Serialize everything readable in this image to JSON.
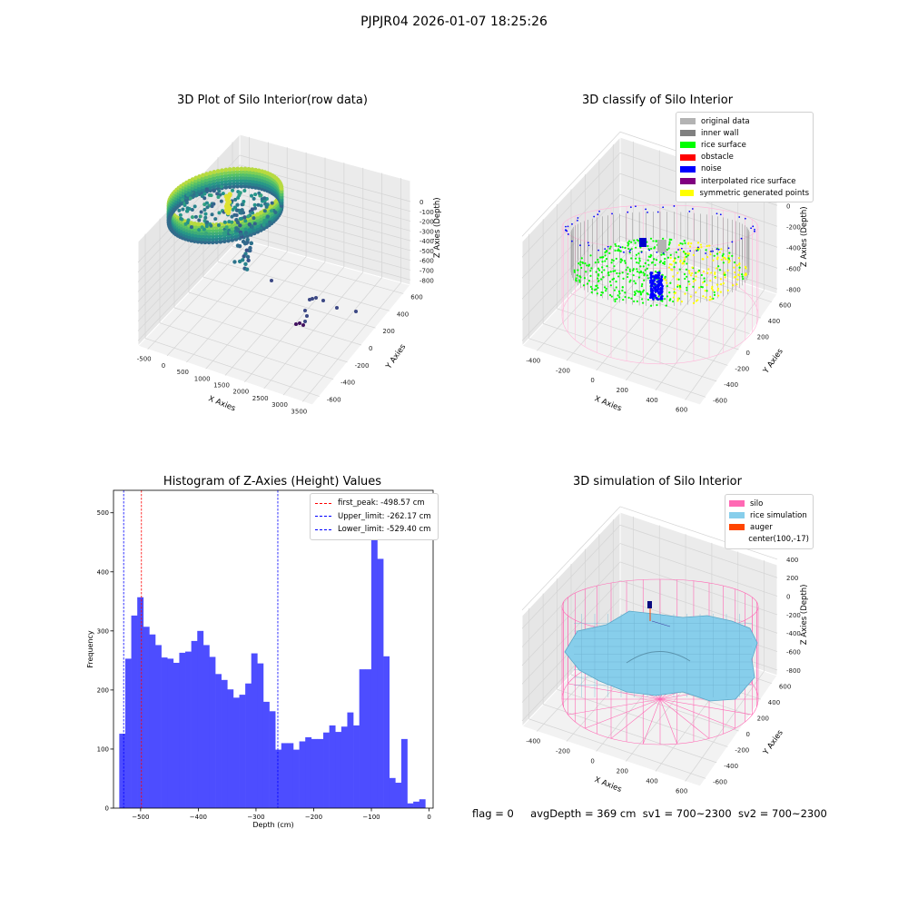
{
  "figure": {
    "suptitle": "PJPJR04 2026-01-07 18:25:26",
    "status": {
      "flag": "flag = 0",
      "avg_depth": "avgDepth = 369 cm",
      "sv1": "sv1 = 700~2300",
      "sv2": "sv2 = 700~2300"
    }
  },
  "chart_data": [
    {
      "type": "scatter",
      "projection": "3d",
      "title": "3D Plot of Silo Interior(row data)",
      "xlabel": "X Axies",
      "ylabel": "Y Axies",
      "zlabel": "Z Axies (Depth)",
      "x_ticks": [
        "-500",
        "0",
        "500",
        "1000",
        "1500",
        "2000",
        "2500",
        "3000",
        "3500"
      ],
      "y_ticks": [
        "-600",
        "-400",
        "-200",
        "0",
        "200",
        "400",
        "600"
      ],
      "z_ticks": [
        "0",
        "-100",
        "-200",
        "-300",
        "-400",
        "-500",
        "-600",
        "-700",
        "-800"
      ],
      "colormap": "viridis",
      "grid": true
    },
    {
      "type": "scatter",
      "projection": "3d",
      "title": "3D classify of Silo Interior",
      "xlabel": "X Axies",
      "ylabel": "Y Axies",
      "zlabel": "Z Axies (Depth)",
      "x_ticks": [
        "-400",
        "-200",
        "0",
        "200",
        "400",
        "600"
      ],
      "y_ticks": [
        "-600",
        "-400",
        "-200",
        "0",
        "200",
        "400",
        "600"
      ],
      "z_ticks": [
        "200",
        "0",
        "-200",
        "-400",
        "-600",
        "-800"
      ],
      "legend": [
        {
          "label": "original data",
          "color": "#b3b3b3"
        },
        {
          "label": "inner wall",
          "color": "#808080"
        },
        {
          "label": "rice surface",
          "color": "#00ff00"
        },
        {
          "label": "obstacle",
          "color": "#ff0000"
        },
        {
          "label": "noise",
          "color": "#0000ff"
        },
        {
          "label": "interpolated rice surface",
          "color": "#800080"
        },
        {
          "label": "symmetric generated points",
          "color": "#ffff00"
        }
      ],
      "legend_position": "top-right",
      "grid": true
    },
    {
      "type": "bar",
      "title": "Histogram of Z-Axies (Height) Values",
      "xlabel": "Depth (cm)",
      "ylabel": "Frequency",
      "bar_color": "#4d4dff",
      "bin_start": -537,
      "bin_width": 10.4,
      "values": [
        126,
        253,
        326,
        357,
        307,
        294,
        276,
        255,
        253,
        246,
        263,
        265,
        283,
        300,
        276,
        256,
        227,
        217,
        201,
        187,
        192,
        211,
        262,
        245,
        180,
        164,
        99,
        110,
        110,
        99,
        113,
        120,
        117,
        117,
        128,
        140,
        129,
        138,
        162,
        140,
        235,
        235,
        497,
        422,
        257,
        51,
        43,
        117,
        8,
        11,
        15
      ],
      "xlim": [
        -547,
        7
      ],
      "ylim": [
        0,
        538
      ],
      "x_ticks": [
        -500,
        -400,
        -300,
        -200,
        -100,
        0
      ],
      "x_tick_labels": [
        "−500",
        "−400",
        "−300",
        "−200",
        "−100",
        "0"
      ],
      "y_ticks": [
        0,
        100,
        200,
        300,
        400,
        500
      ],
      "y_tick_labels": [
        "0",
        "100",
        "200",
        "300",
        "400",
        "500"
      ],
      "vlines": [
        {
          "label": "first_peak: -498.57 cm",
          "x": -498.57,
          "color": "#ff0000"
        },
        {
          "label": "Upper_limit: -262.17 cm",
          "x": -262.17,
          "color": "#0000ff"
        },
        {
          "label": "Lower_limit: -529.40 cm",
          "x": -529.4,
          "color": "#0000ff"
        }
      ],
      "legend_position": "top-right"
    },
    {
      "type": "surface",
      "projection": "3d",
      "title": "3D simulation of Silo Interior",
      "xlabel": "X Axies",
      "ylabel": "Y Axies",
      "zlabel": "Z Axies (Depth)",
      "x_ticks": [
        "-400",
        "-200",
        "0",
        "200",
        "400",
        "600"
      ],
      "y_ticks": [
        "-600",
        "-400",
        "-200",
        "0",
        "200",
        "400",
        "600"
      ],
      "z_ticks": [
        "400",
        "200",
        "0",
        "-200",
        "-400",
        "-600",
        "-800"
      ],
      "legend": [
        {
          "label": "silo",
          "color": "#ff69b4"
        },
        {
          "label": "rice simulation",
          "color": "#87ceeb"
        },
        {
          "label": "auger",
          "color": "#ff4500"
        },
        {
          "label": "center(100,-17)",
          "color": ""
        }
      ],
      "legend_position": "top-right",
      "grid": true
    }
  ]
}
